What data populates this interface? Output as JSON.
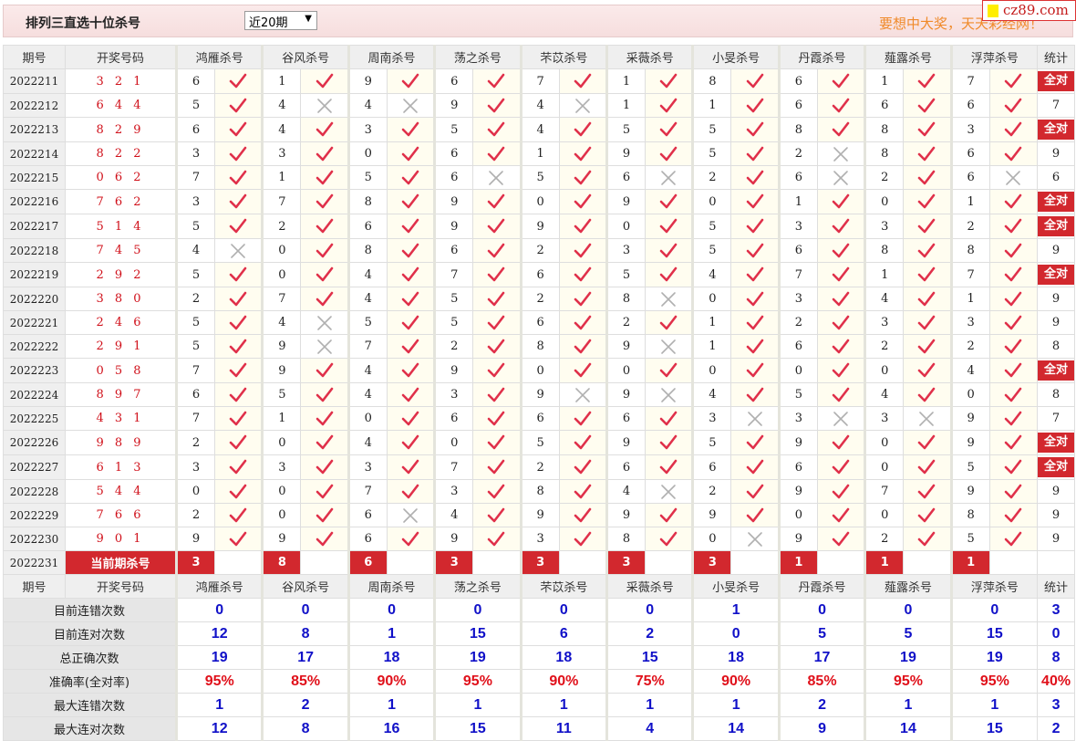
{
  "header": {
    "title": "排列三直选十位杀号",
    "period_select": "近20期",
    "slogan": "要想中大奖，天天彩经网！",
    "logo": "cz89.com"
  },
  "columns": {
    "period": "期号",
    "draw": "开奖号码",
    "experts": [
      "鸿雁杀号",
      "谷风杀号",
      "周南杀号",
      "荡之杀号",
      "芣苡杀号",
      "采薇杀号",
      "小旻杀号",
      "丹霞杀号",
      "薤露杀号",
      "浮萍杀号"
    ],
    "stat": "统计"
  },
  "colors": {
    "accent_red": "#d2282e",
    "check": "#e0304a",
    "cross": "#b0b0b0",
    "blue": "#1010c8",
    "orange": "#f08a2a"
  },
  "rows": [
    {
      "period": "2022211",
      "draw": "3 2 1",
      "kills": [
        [
          6,
          1
        ],
        [
          1,
          1
        ],
        [
          9,
          1
        ],
        [
          6,
          1
        ],
        [
          7,
          1
        ],
        [
          1,
          1
        ],
        [
          8,
          1
        ],
        [
          6,
          1
        ],
        [
          1,
          1
        ],
        [
          7,
          1
        ]
      ],
      "stat": "全对"
    },
    {
      "period": "2022212",
      "draw": "6 4 4",
      "kills": [
        [
          5,
          1
        ],
        [
          4,
          0
        ],
        [
          4,
          0
        ],
        [
          9,
          1
        ],
        [
          4,
          0
        ],
        [
          1,
          1
        ],
        [
          1,
          1
        ],
        [
          6,
          1
        ],
        [
          6,
          1
        ],
        [
          6,
          1
        ]
      ],
      "stat": "7"
    },
    {
      "period": "2022213",
      "draw": "8 2 9",
      "kills": [
        [
          6,
          1
        ],
        [
          4,
          1
        ],
        [
          3,
          1
        ],
        [
          5,
          1
        ],
        [
          4,
          1
        ],
        [
          5,
          1
        ],
        [
          5,
          1
        ],
        [
          8,
          1
        ],
        [
          8,
          1
        ],
        [
          3,
          1
        ]
      ],
      "stat": "全对"
    },
    {
      "period": "2022214",
      "draw": "8 2 2",
      "kills": [
        [
          3,
          1
        ],
        [
          3,
          1
        ],
        [
          0,
          1
        ],
        [
          6,
          1
        ],
        [
          1,
          1
        ],
        [
          9,
          1
        ],
        [
          5,
          1
        ],
        [
          2,
          0
        ],
        [
          8,
          1
        ],
        [
          6,
          1
        ]
      ],
      "stat": "9"
    },
    {
      "period": "2022215",
      "draw": "0 6 2",
      "kills": [
        [
          7,
          1
        ],
        [
          1,
          1
        ],
        [
          5,
          1
        ],
        [
          6,
          0
        ],
        [
          5,
          1
        ],
        [
          6,
          0
        ],
        [
          2,
          1
        ],
        [
          6,
          0
        ],
        [
          2,
          1
        ],
        [
          6,
          0
        ]
      ],
      "stat": "6"
    },
    {
      "period": "2022216",
      "draw": "7 6 2",
      "kills": [
        [
          3,
          1
        ],
        [
          7,
          1
        ],
        [
          8,
          1
        ],
        [
          9,
          1
        ],
        [
          0,
          1
        ],
        [
          9,
          1
        ],
        [
          0,
          1
        ],
        [
          1,
          1
        ],
        [
          0,
          1
        ],
        [
          1,
          1
        ]
      ],
      "stat": "全对"
    },
    {
      "period": "2022217",
      "draw": "5 1 4",
      "kills": [
        [
          5,
          1
        ],
        [
          2,
          1
        ],
        [
          6,
          1
        ],
        [
          9,
          1
        ],
        [
          9,
          1
        ],
        [
          0,
          1
        ],
        [
          5,
          1
        ],
        [
          3,
          1
        ],
        [
          3,
          1
        ],
        [
          2,
          1
        ]
      ],
      "stat": "全对"
    },
    {
      "period": "2022218",
      "draw": "7 4 5",
      "kills": [
        [
          4,
          0
        ],
        [
          0,
          1
        ],
        [
          8,
          1
        ],
        [
          6,
          1
        ],
        [
          2,
          1
        ],
        [
          3,
          1
        ],
        [
          5,
          1
        ],
        [
          6,
          1
        ],
        [
          8,
          1
        ],
        [
          8,
          1
        ]
      ],
      "stat": "9"
    },
    {
      "period": "2022219",
      "draw": "2 9 2",
      "kills": [
        [
          5,
          1
        ],
        [
          0,
          1
        ],
        [
          4,
          1
        ],
        [
          7,
          1
        ],
        [
          6,
          1
        ],
        [
          5,
          1
        ],
        [
          4,
          1
        ],
        [
          7,
          1
        ],
        [
          1,
          1
        ],
        [
          7,
          1
        ]
      ],
      "stat": "全对"
    },
    {
      "period": "2022220",
      "draw": "3 8 0",
      "kills": [
        [
          2,
          1
        ],
        [
          7,
          1
        ],
        [
          4,
          1
        ],
        [
          5,
          1
        ],
        [
          2,
          1
        ],
        [
          8,
          0
        ],
        [
          0,
          1
        ],
        [
          3,
          1
        ],
        [
          4,
          1
        ],
        [
          1,
          1
        ]
      ],
      "stat": "9"
    },
    {
      "period": "2022221",
      "draw": "2 4 6",
      "kills": [
        [
          5,
          1
        ],
        [
          4,
          0
        ],
        [
          5,
          1
        ],
        [
          5,
          1
        ],
        [
          6,
          1
        ],
        [
          2,
          1
        ],
        [
          1,
          1
        ],
        [
          2,
          1
        ],
        [
          3,
          1
        ],
        [
          3,
          1
        ]
      ],
      "stat": "9"
    },
    {
      "period": "2022222",
      "draw": "2 9 1",
      "kills": [
        [
          5,
          1
        ],
        [
          9,
          0
        ],
        [
          7,
          1
        ],
        [
          2,
          1
        ],
        [
          8,
          1
        ],
        [
          9,
          0
        ],
        [
          1,
          1
        ],
        [
          6,
          1
        ],
        [
          2,
          1
        ],
        [
          2,
          1
        ]
      ],
      "stat": "8"
    },
    {
      "period": "2022223",
      "draw": "0 5 8",
      "kills": [
        [
          7,
          1
        ],
        [
          9,
          1
        ],
        [
          4,
          1
        ],
        [
          9,
          1
        ],
        [
          0,
          1
        ],
        [
          0,
          1
        ],
        [
          0,
          1
        ],
        [
          0,
          1
        ],
        [
          0,
          1
        ],
        [
          4,
          1
        ]
      ],
      "stat": "全对"
    },
    {
      "period": "2022224",
      "draw": "8 9 7",
      "kills": [
        [
          6,
          1
        ],
        [
          5,
          1
        ],
        [
          4,
          1
        ],
        [
          3,
          1
        ],
        [
          9,
          0
        ],
        [
          9,
          0
        ],
        [
          4,
          1
        ],
        [
          5,
          1
        ],
        [
          4,
          1
        ],
        [
          0,
          1
        ]
      ],
      "stat": "8"
    },
    {
      "period": "2022225",
      "draw": "4 3 1",
      "kills": [
        [
          7,
          1
        ],
        [
          1,
          1
        ],
        [
          0,
          1
        ],
        [
          6,
          1
        ],
        [
          6,
          1
        ],
        [
          6,
          1
        ],
        [
          3,
          0
        ],
        [
          3,
          0
        ],
        [
          3,
          0
        ],
        [
          9,
          1
        ]
      ],
      "stat": "7"
    },
    {
      "period": "2022226",
      "draw": "9 8 9",
      "kills": [
        [
          2,
          1
        ],
        [
          0,
          1
        ],
        [
          4,
          1
        ],
        [
          0,
          1
        ],
        [
          5,
          1
        ],
        [
          9,
          1
        ],
        [
          5,
          1
        ],
        [
          9,
          1
        ],
        [
          0,
          1
        ],
        [
          9,
          1
        ]
      ],
      "stat": "全对"
    },
    {
      "period": "2022227",
      "draw": "6 1 3",
      "kills": [
        [
          3,
          1
        ],
        [
          3,
          1
        ],
        [
          3,
          1
        ],
        [
          7,
          1
        ],
        [
          2,
          1
        ],
        [
          6,
          1
        ],
        [
          6,
          1
        ],
        [
          6,
          1
        ],
        [
          0,
          1
        ],
        [
          5,
          1
        ]
      ],
      "stat": "全对"
    },
    {
      "period": "2022228",
      "draw": "5 4 4",
      "kills": [
        [
          0,
          1
        ],
        [
          0,
          1
        ],
        [
          7,
          1
        ],
        [
          3,
          1
        ],
        [
          8,
          1
        ],
        [
          4,
          0
        ],
        [
          2,
          1
        ],
        [
          9,
          1
        ],
        [
          7,
          1
        ],
        [
          9,
          1
        ]
      ],
      "stat": "9"
    },
    {
      "period": "2022229",
      "draw": "7 6 6",
      "kills": [
        [
          2,
          1
        ],
        [
          0,
          1
        ],
        [
          6,
          0
        ],
        [
          4,
          1
        ],
        [
          9,
          1
        ],
        [
          9,
          1
        ],
        [
          9,
          1
        ],
        [
          0,
          1
        ],
        [
          0,
          1
        ],
        [
          8,
          1
        ]
      ],
      "stat": "9"
    },
    {
      "period": "2022230",
      "draw": "9 0 1",
      "kills": [
        [
          9,
          1
        ],
        [
          9,
          1
        ],
        [
          6,
          1
        ],
        [
          9,
          1
        ],
        [
          3,
          1
        ],
        [
          8,
          1
        ],
        [
          0,
          0
        ],
        [
          9,
          1
        ],
        [
          2,
          1
        ],
        [
          5,
          1
        ]
      ],
      "stat": "9"
    }
  ],
  "current": {
    "period": "2022231",
    "label": "当前期杀号",
    "kills": [
      "3",
      "8",
      "6",
      "3",
      "3",
      "3",
      "3",
      "1",
      "1",
      "1"
    ]
  },
  "stats": [
    {
      "label": "目前连错次数",
      "values": [
        "0",
        "0",
        "0",
        "0",
        "0",
        "0",
        "1",
        "0",
        "0",
        "0"
      ],
      "total": "3"
    },
    {
      "label": "目前连对次数",
      "values": [
        "12",
        "8",
        "1",
        "15",
        "6",
        "2",
        "0",
        "5",
        "5",
        "15"
      ],
      "total": "0"
    },
    {
      "label": "总正确次数",
      "values": [
        "19",
        "17",
        "18",
        "19",
        "18",
        "15",
        "18",
        "17",
        "19",
        "19"
      ],
      "total": "8"
    },
    {
      "label": "准确率(全对率)",
      "values": [
        "95%",
        "85%",
        "90%",
        "95%",
        "90%",
        "75%",
        "90%",
        "85%",
        "95%",
        "95%"
      ],
      "total": "40%",
      "is_pct": true
    },
    {
      "label": "最大连错次数",
      "values": [
        "1",
        "2",
        "1",
        "1",
        "1",
        "1",
        "1",
        "2",
        "1",
        "1"
      ],
      "total": "3"
    },
    {
      "label": "最大连对次数",
      "values": [
        "12",
        "8",
        "16",
        "15",
        "11",
        "4",
        "14",
        "9",
        "14",
        "15"
      ],
      "total": "2"
    }
  ]
}
